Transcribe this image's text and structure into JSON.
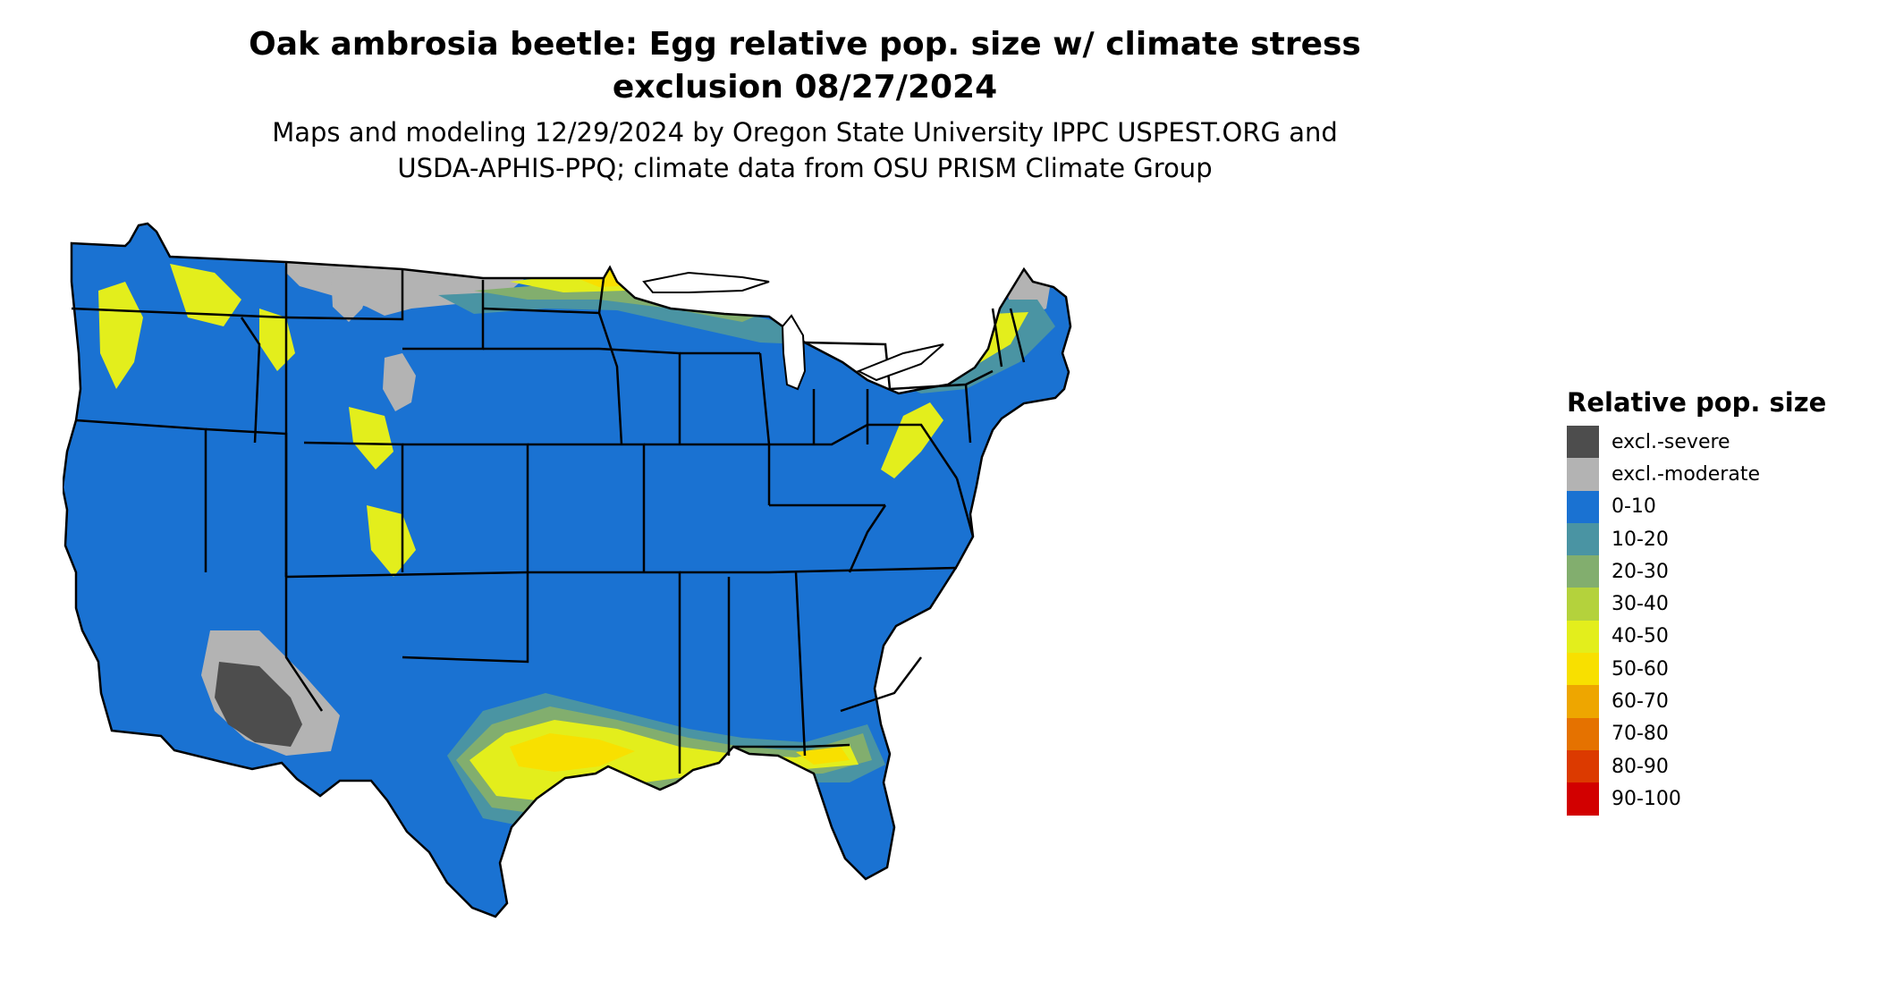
{
  "title_line1": "Oak ambrosia beetle: Egg relative pop. size w/ climate stress",
  "title_line2": "exclusion 08/27/2024",
  "subtitle_line1": "Maps and modeling 12/29/2024 by Oregon State University IPPC USPEST.ORG and",
  "subtitle_line2": "USDA-APHIS-PPQ; climate data from OSU PRISM Climate Group",
  "legend": {
    "title": "Relative pop. size",
    "items": [
      {
        "label": "excl.-severe",
        "color": "#4d4d4d"
      },
      {
        "label": "excl.-moderate",
        "color": "#b3b3b3"
      },
      {
        "label": "0-10",
        "color": "#1a72d2"
      },
      {
        "label": "10-20",
        "color": "#4a94a3"
      },
      {
        "label": "20-30",
        "color": "#82ae6e"
      },
      {
        "label": "30-40",
        "color": "#b4d23c"
      },
      {
        "label": "40-50",
        "color": "#e3ee1c"
      },
      {
        "label": "50-60",
        "color": "#f8e000"
      },
      {
        "label": "60-70",
        "color": "#eea600"
      },
      {
        "label": "70-80",
        "color": "#e57200"
      },
      {
        "label": "80-90",
        "color": "#dc3a00"
      },
      {
        "label": "90-100",
        "color": "#d20000"
      }
    ]
  },
  "map_colors": {
    "base": "#1a72d2",
    "excluded_moderate": "#b3b3b3",
    "excluded_severe": "#4d4d4d",
    "low": "#4a94a3",
    "mid": "#82ae6e",
    "mid_high": "#b4d23c",
    "high": "#e3ee1c",
    "peak": "#f8e000",
    "border": "#000000"
  }
}
